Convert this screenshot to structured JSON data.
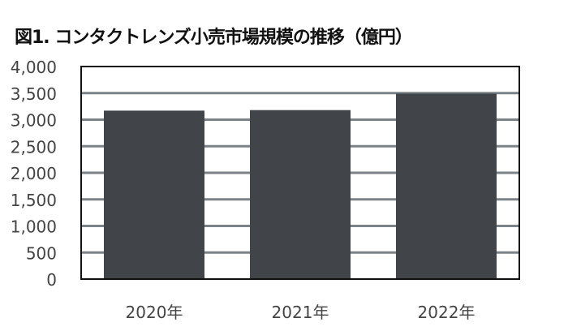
{
  "chart_data": {
    "type": "bar",
    "title": "図1. コンタクトレンズ小売市場規模の推移（億円）",
    "categories": [
      "2020年",
      "2021年",
      "2022年"
    ],
    "values": [
      3170,
      3180,
      3490
    ],
    "ylim": [
      0,
      4000
    ],
    "yticks": [
      0,
      500,
      1000,
      1500,
      2000,
      2500,
      3000,
      3500,
      4000
    ],
    "ytick_labels": [
      "0",
      "500",
      "1,000",
      "1,500",
      "2,000",
      "2,500",
      "3,000",
      "3,500",
      "4,000"
    ],
    "grid": true,
    "legend": "none",
    "colors": {
      "bar": "#414449",
      "grid": "#7b8389",
      "axis": "#111111"
    }
  }
}
